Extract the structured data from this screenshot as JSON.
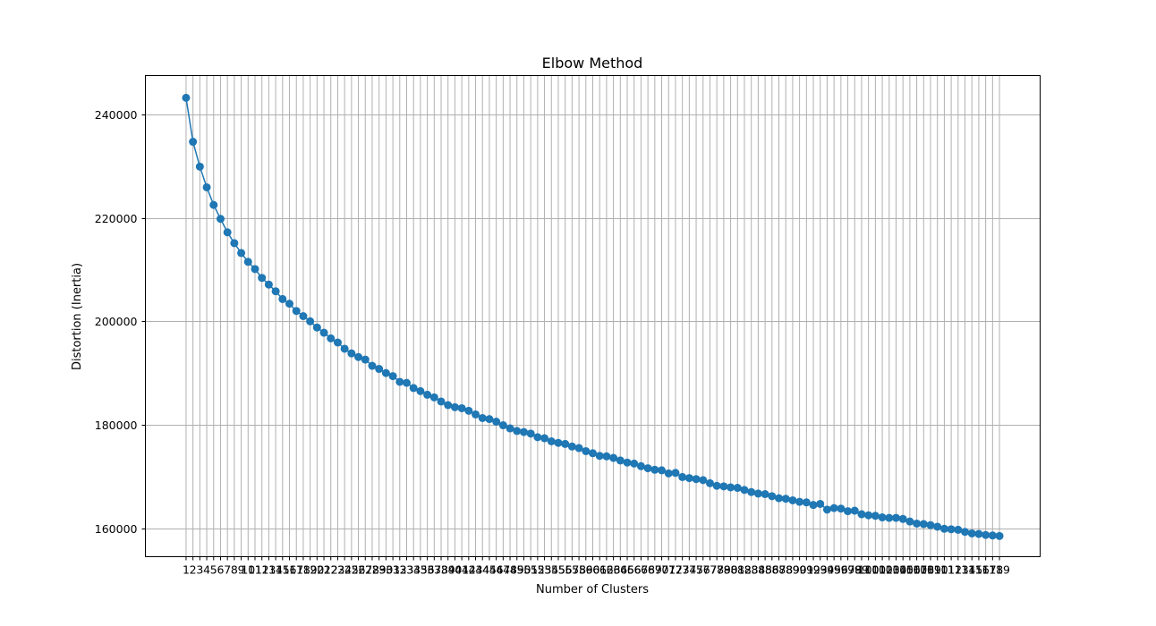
{
  "chart_data": {
    "type": "line",
    "title": "Elbow Method",
    "xlabel": "Number of Clusters",
    "ylabel": "Distortion (Inertia)",
    "x": [
      1,
      2,
      3,
      4,
      5,
      6,
      7,
      8,
      9,
      10,
      11,
      12,
      13,
      14,
      15,
      16,
      17,
      18,
      19,
      20,
      21,
      22,
      23,
      24,
      25,
      26,
      27,
      28,
      29,
      30,
      31,
      32,
      33,
      34,
      35,
      36,
      37,
      38,
      39,
      40,
      41,
      42,
      43,
      44,
      45,
      46,
      47,
      48,
      49,
      50,
      51,
      52,
      53,
      54,
      55,
      56,
      57,
      58,
      59,
      60,
      61,
      62,
      63,
      64,
      65,
      66,
      67,
      68,
      69,
      70,
      71,
      72,
      73,
      74,
      75,
      76,
      77,
      78,
      79,
      80,
      81,
      82,
      83,
      84,
      85,
      86,
      87,
      88,
      89,
      90,
      91,
      92,
      93,
      94,
      95,
      96,
      97,
      98,
      99,
      100,
      101,
      102,
      103,
      104,
      105,
      106,
      107,
      108,
      109,
      110,
      111,
      112,
      113,
      114,
      115,
      116,
      117,
      118,
      119
    ],
    "y": [
      243200,
      234700,
      229900,
      225900,
      222500,
      219800,
      217200,
      215100,
      213200,
      211500,
      210100,
      208400,
      207100,
      205800,
      204300,
      203400,
      202000,
      201000,
      200000,
      198800,
      197800,
      196700,
      195900,
      194700,
      193800,
      193100,
      192600,
      191400,
      190800,
      190000,
      189400,
      188300,
      188100,
      187100,
      186500,
      185800,
      185300,
      184500,
      183800,
      183400,
      183200,
      182700,
      182000,
      181300,
      181100,
      180600,
      179900,
      179300,
      178800,
      178600,
      178300,
      177600,
      177400,
      176800,
      176500,
      176300,
      175800,
      175500,
      174900,
      174500,
      174000,
      173900,
      173600,
      173100,
      172700,
      172500,
      172000,
      171600,
      171300,
      171200,
      170600,
      170700,
      169900,
      169700,
      169500,
      169300,
      168700,
      168200,
      168100,
      167900,
      167800,
      167400,
      167000,
      166700,
      166600,
      166200,
      165800,
      165700,
      165400,
      165100,
      165000,
      164500,
      164700,
      163600,
      163900,
      163800,
      163300,
      163400,
      162700,
      162500,
      162400,
      162100,
      162000,
      162000,
      161800,
      161300,
      160900,
      160800,
      160600,
      160300,
      159900,
      159800,
      159700,
      159300,
      159000,
      158900,
      158700,
      158600,
      158500
    ],
    "ylim": [
      154500,
      247500
    ],
    "xlim": [
      -4.9,
      124.9
    ],
    "yticks": [
      160000,
      180000,
      200000,
      220000,
      240000
    ],
    "ytick_labels": [
      "160000",
      "180000",
      "200000",
      "220000",
      "240000"
    ],
    "grid": true,
    "color": "#1f77b4",
    "marker": "circle"
  }
}
